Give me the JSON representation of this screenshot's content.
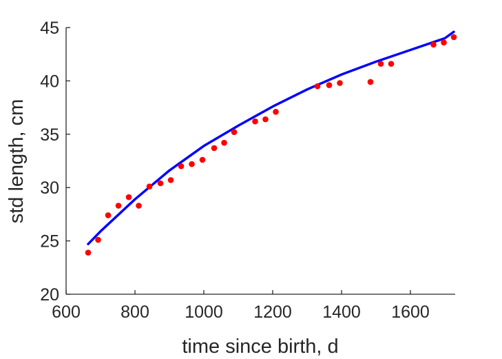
{
  "chart_data": {
    "type": "scatter",
    "xlabel": "time since birth, d",
    "ylabel": "std length, cm",
    "xlim": [
      600,
      1730
    ],
    "ylim": [
      20,
      45
    ],
    "xticks": [
      600,
      800,
      1000,
      1200,
      1400,
      1600
    ],
    "yticks": [
      20,
      25,
      30,
      35,
      40,
      45
    ],
    "grid": false,
    "series": [
      {
        "kind": "points",
        "color": "#ff0000",
        "x": [
          664,
          693,
          722,
          752,
          782,
          811,
          842,
          874,
          904,
          934,
          965,
          996,
          1030,
          1059,
          1088,
          1149,
          1179,
          1209,
          1330,
          1364,
          1395,
          1484,
          1514,
          1544,
          1667,
          1697,
          1726
        ],
        "y": [
          23.9,
          25.1,
          27.4,
          28.3,
          29.1,
          28.3,
          30.1,
          30.4,
          30.7,
          32.0,
          32.2,
          32.6,
          33.7,
          34.2,
          35.2,
          36.2,
          36.4,
          37.1,
          39.5,
          39.6,
          39.8,
          39.9,
          41.6,
          41.6,
          43.4,
          43.6,
          44.1
        ]
      },
      {
        "kind": "curve",
        "color": "#0000ff",
        "x": [
          664,
          700,
          800,
          900,
          1000,
          1100,
          1200,
          1300,
          1400,
          1500,
          1600,
          1700,
          1726
        ],
        "y": [
          24.7,
          25.9,
          28.9,
          31.6,
          33.9,
          35.8,
          37.6,
          39.2,
          40.6,
          41.8,
          42.9,
          44.0,
          44.6
        ]
      }
    ]
  }
}
